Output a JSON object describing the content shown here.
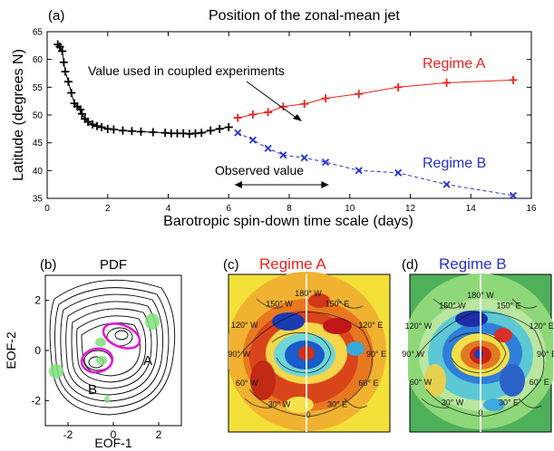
{
  "chart_data": [
    {
      "panel_label": "(a)",
      "type": "line",
      "title": "Position of the zonal-mean jet",
      "xlabel": "Barotropic spin-down time scale (days)",
      "ylabel": "Latitude (degrees N)",
      "xlim": [
        0,
        16
      ],
      "ylim": [
        35,
        65
      ],
      "xticks": [
        "0",
        "2",
        "4",
        "6",
        "8",
        "10",
        "12",
        "14",
        "16"
      ],
      "yticks": [
        "35",
        "40",
        "45",
        "50",
        "55",
        "60",
        "65"
      ],
      "series": [
        {
          "name": "",
          "color": "#000000",
          "marker": "plus",
          "x": [
            0.35,
            0.42,
            0.5,
            0.55,
            0.6,
            0.7,
            0.8,
            0.9,
            1.0,
            1.1,
            1.15,
            1.25,
            1.35,
            1.5,
            1.65,
            1.8,
            2.0,
            2.2,
            2.5,
            2.8,
            3.1,
            3.5,
            3.9,
            4.1,
            4.3,
            4.5,
            4.7,
            4.9,
            5.1,
            5.4,
            5.7,
            6.0
          ],
          "y": [
            62.7,
            62.3,
            61.5,
            59.5,
            57.8,
            56.0,
            54.0,
            52.1,
            51.5,
            51.0,
            50.2,
            49.3,
            48.8,
            48.3,
            48.0,
            47.8,
            47.5,
            47.4,
            47.2,
            47.1,
            47.0,
            46.9,
            46.8,
            46.7,
            46.7,
            46.7,
            46.6,
            46.7,
            46.8,
            47.2,
            47.5,
            47.8
          ]
        },
        {
          "name": "Regime A",
          "color": "#e8231e",
          "marker": "plus",
          "x": [
            6.3,
            6.8,
            7.3,
            7.8,
            8.5,
            9.2,
            10.3,
            11.6,
            13.2,
            15.4
          ],
          "y": [
            49.5,
            50.1,
            50.5,
            51.5,
            52.0,
            53.0,
            53.8,
            55.0,
            55.8,
            56.3
          ]
        },
        {
          "name": "Regime B",
          "color": "#2b2fd0",
          "marker": "x",
          "x": [
            6.3,
            6.8,
            7.3,
            7.8,
            8.5,
            9.2,
            10.3,
            11.6,
            13.2,
            15.4
          ],
          "y": [
            46.8,
            45.5,
            44.0,
            42.8,
            42.3,
            41.5,
            40.0,
            39.6,
            37.5,
            35.5
          ]
        }
      ],
      "annotations": {
        "regime_a": "Regime A",
        "regime_b": "Regime B",
        "coupled": "Value used in coupled experiments",
        "observed": "Observed value",
        "observed_range": [
          6.2,
          9.3
        ]
      }
    },
    {
      "panel_label": "(b)",
      "type": "contour",
      "title": "PDF",
      "xlabel": "EOF-1",
      "ylabel": "EOF-2",
      "xlim": [
        -3,
        3
      ],
      "ylim": [
        -3,
        3
      ],
      "xticks": [
        "-2",
        "0",
        "2"
      ],
      "yticks": [
        "-2",
        "0",
        "2"
      ],
      "labels": {
        "a": "A",
        "b": "B"
      }
    },
    {
      "panel_label": "(c)",
      "type": "map",
      "title": "Regime A",
      "title_color": "#e8231e",
      "lon_labels": [
        "150° W",
        "120° W",
        "90° W",
        "60° W",
        "30° W",
        "0",
        "30° E",
        "60° E",
        "90° E",
        "120° E",
        "150° E",
        "180° W"
      ]
    },
    {
      "panel_label": "(d)",
      "type": "map",
      "title": "Regime B",
      "title_color": "#2b2fd0",
      "lon_labels": [
        "150° W",
        "120° W",
        "90° W",
        "60° W",
        "30° W",
        "0",
        "30° E",
        "60° E",
        "90° E",
        "120° E",
        "150° E",
        "180° W"
      ]
    }
  ]
}
